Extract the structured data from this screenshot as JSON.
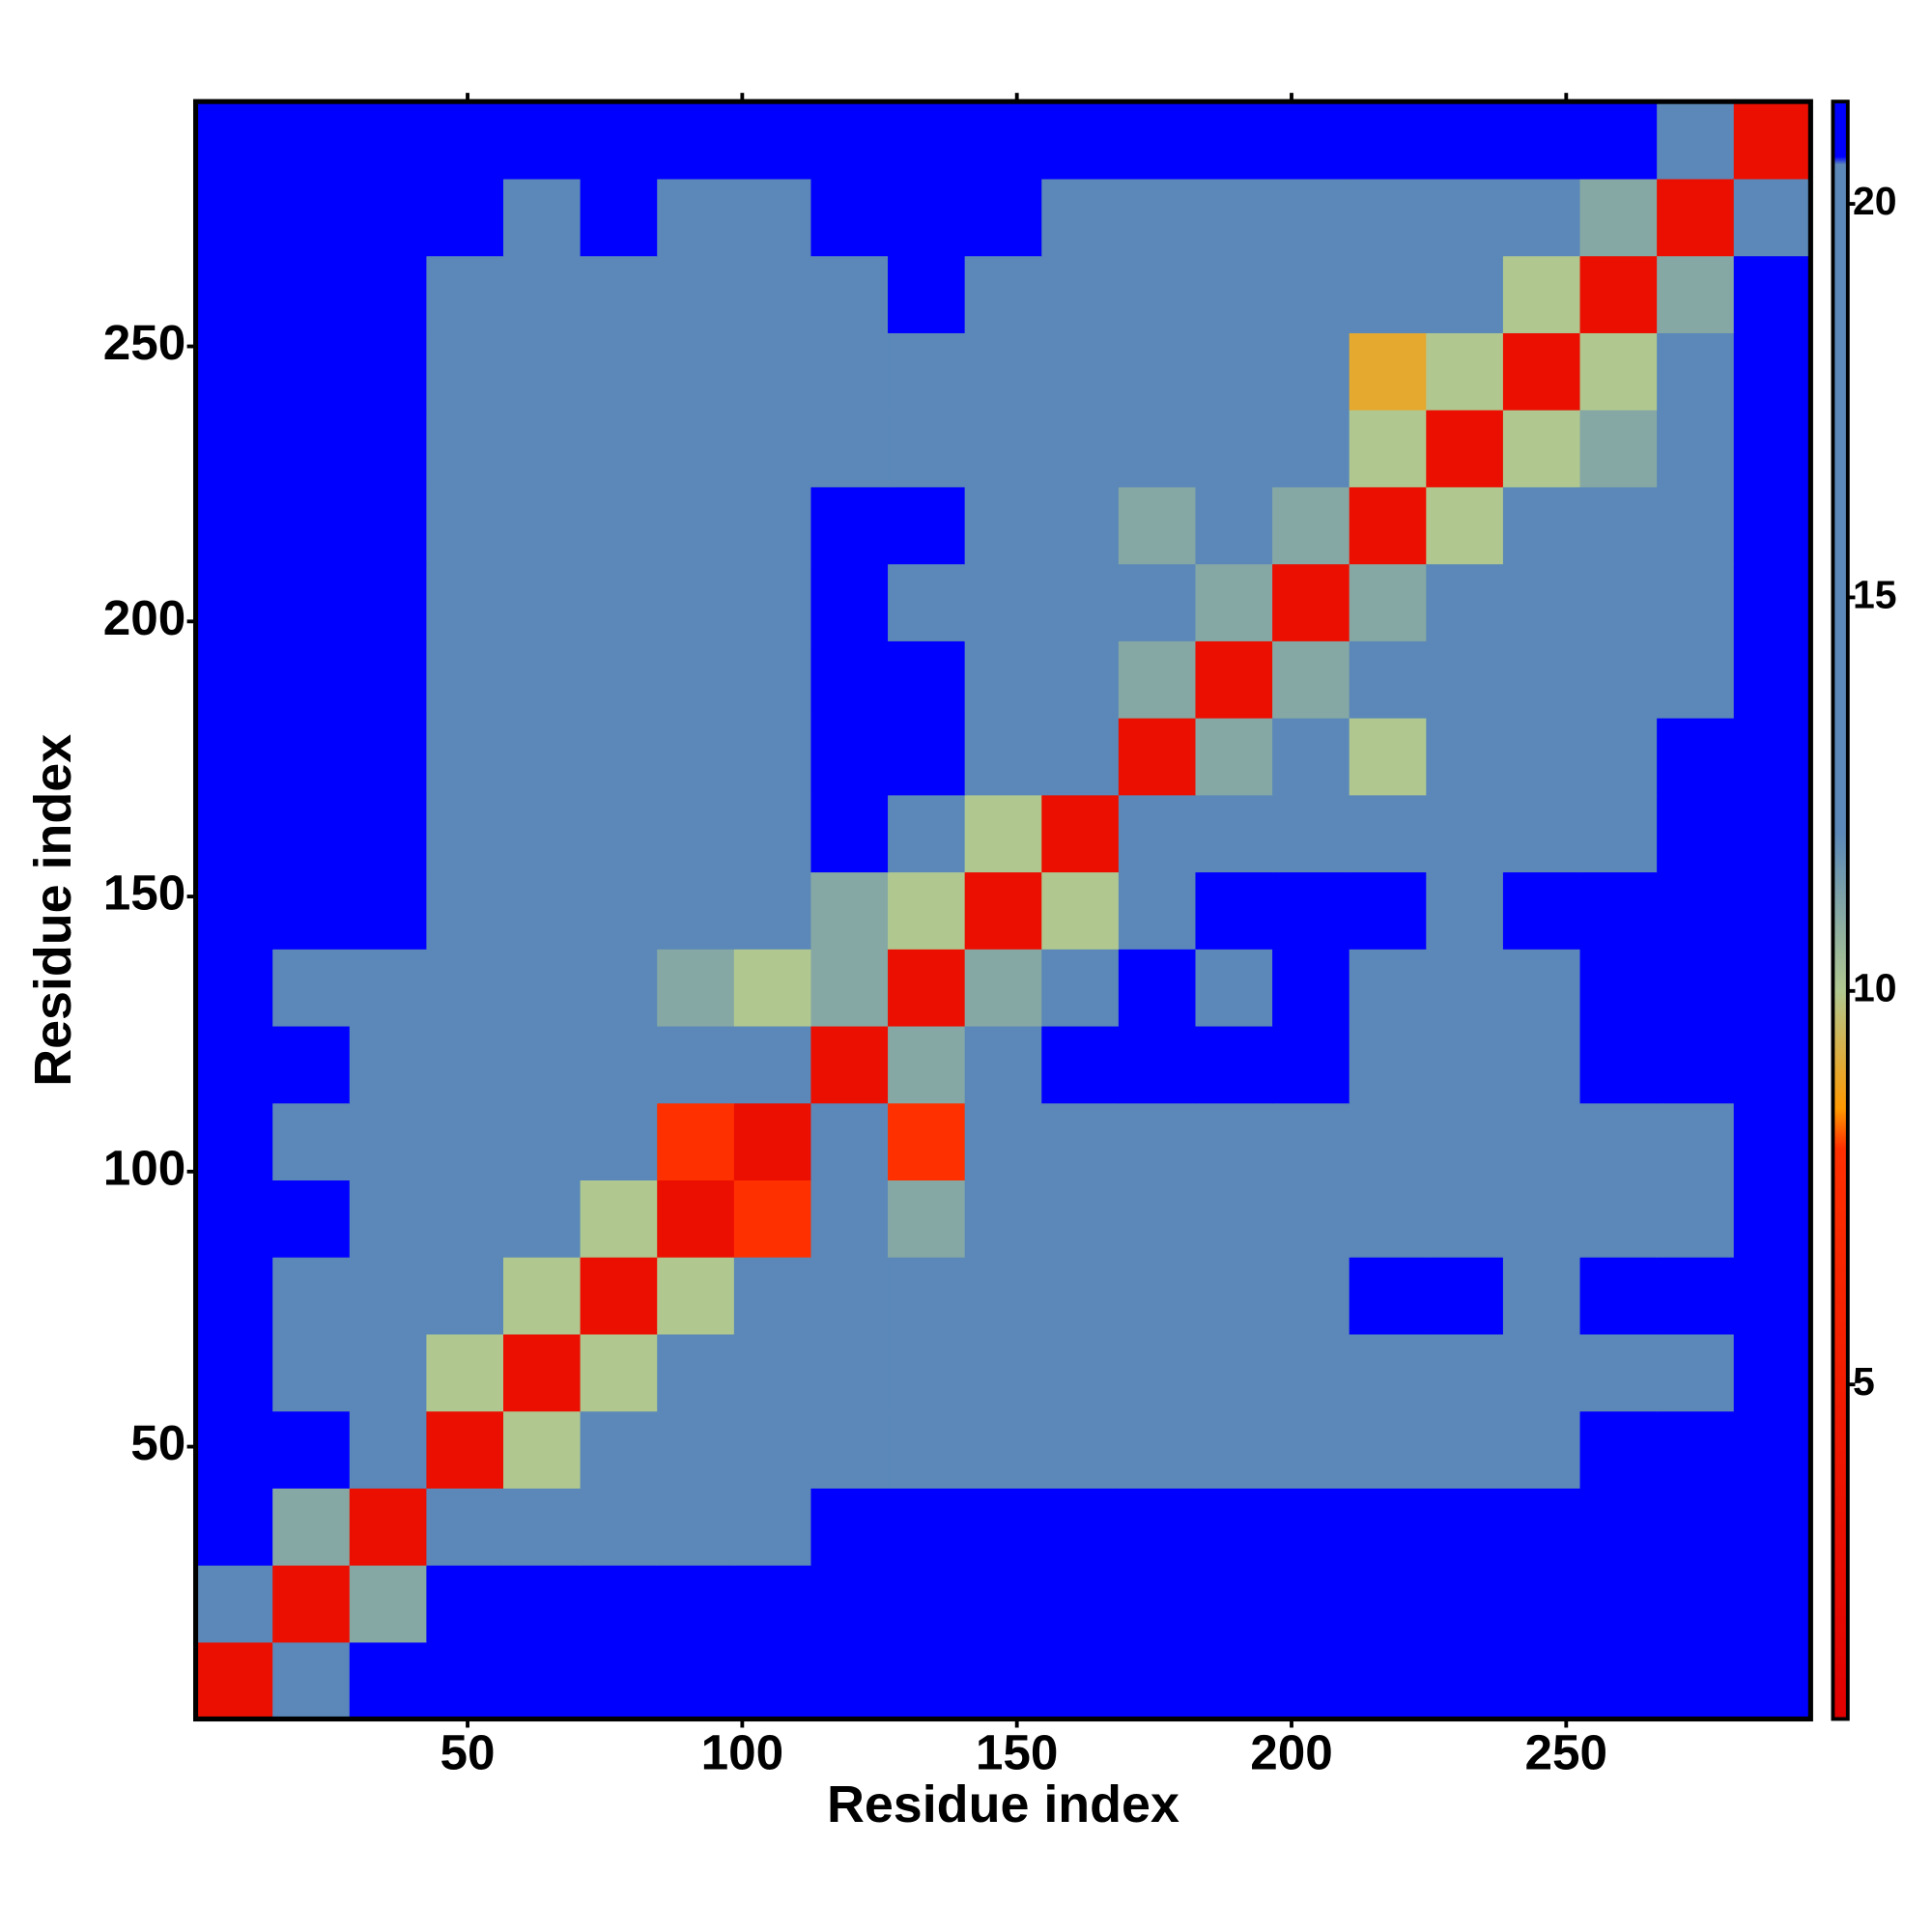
{
  "chart_data": {
    "type": "heatmap",
    "x_label": "Residue index",
    "y_label": "Residue index",
    "x": [
      7.5,
      21.5,
      35.5,
      49.5,
      63.5,
      77.5,
      91.5,
      105.5,
      119.5,
      133.5,
      147.5,
      161.5,
      175.5,
      189.5,
      203.5,
      217.5,
      231.5,
      245.5,
      259.5,
      273.5,
      287.5
    ],
    "y": [
      7.5,
      21.5,
      35.5,
      49.5,
      63.5,
      77.5,
      91.5,
      105.5,
      119.5,
      133.5,
      147.5,
      161.5,
      175.5,
      189.5,
      203.5,
      217.5,
      231.5,
      245.5,
      259.5,
      273.5,
      287.5
    ],
    "values": [
      [
        3,
        13,
        21,
        21,
        21,
        21,
        21,
        21,
        21,
        21,
        21,
        21,
        21,
        21,
        21,
        21,
        21,
        21,
        21,
        21,
        21
      ],
      [
        13,
        3,
        11,
        21,
        21,
        21,
        21,
        21,
        21,
        21,
        21,
        21,
        21,
        21,
        21,
        21,
        21,
        21,
        21,
        21,
        21
      ],
      [
        21,
        11,
        3,
        13,
        20,
        20,
        20,
        20,
        21,
        21,
        21,
        21,
        21,
        21,
        21,
        21,
        21,
        21,
        21,
        21,
        21
      ],
      [
        21,
        21,
        13,
        3,
        10,
        14,
        14,
        15,
        18,
        19,
        19,
        20,
        20,
        20,
        20,
        20,
        20,
        20,
        21,
        21,
        21
      ],
      [
        21,
        20,
        20,
        10,
        3,
        10,
        12,
        12,
        15,
        14,
        16,
        17,
        19,
        17,
        17,
        19,
        17,
        17,
        17,
        18,
        21
      ],
      [
        21,
        20,
        20,
        14,
        10,
        3,
        10,
        12,
        16,
        15,
        16,
        18,
        20,
        19,
        20,
        21,
        21,
        20,
        21,
        21,
        21
      ],
      [
        21,
        21,
        20,
        14,
        12,
        10,
        3,
        8,
        13,
        11,
        17,
        17,
        19,
        17,
        17,
        17,
        17,
        17,
        17,
        17,
        21
      ],
      [
        21,
        20,
        20,
        13,
        12,
        12,
        8,
        3,
        12,
        8,
        17,
        18,
        20,
        17,
        18,
        17,
        17,
        17,
        17,
        17,
        21
      ],
      [
        21,
        21,
        20,
        17,
        16,
        15,
        13,
        12,
        3,
        11,
        18,
        21,
        21,
        21,
        21,
        18,
        17,
        19,
        21,
        21,
        21
      ],
      [
        21,
        20,
        20,
        15,
        13,
        14,
        11,
        10,
        11,
        3,
        11,
        19,
        21,
        20,
        21,
        17,
        18,
        19,
        21,
        21,
        21
      ],
      [
        21,
        21,
        21,
        17,
        17,
        17,
        16,
        17,
        11,
        10,
        3,
        10,
        20,
        21,
        21,
        21,
        19,
        21,
        21,
        21,
        21
      ],
      [
        21,
        21,
        21,
        16,
        17,
        19,
        18,
        17,
        21,
        20,
        10,
        3,
        12,
        17,
        17,
        17,
        17,
        17,
        18,
        21,
        21
      ],
      [
        21,
        21,
        21,
        18,
        17,
        19,
        18,
        18,
        21,
        21,
        18,
        12,
        3,
        11,
        17,
        10,
        14,
        16,
        17,
        21,
        21
      ],
      [
        21,
        21,
        21,
        19,
        19,
        20,
        18,
        19,
        21,
        21,
        17,
        16,
        11,
        3,
        11,
        15,
        13,
        15,
        16,
        19,
        21
      ],
      [
        21,
        21,
        21,
        19,
        19,
        19,
        17,
        17,
        21,
        20,
        17,
        15,
        14,
        11,
        3,
        11,
        14,
        13,
        13,
        17,
        21
      ],
      [
        21,
        21,
        21,
        19,
        18,
        19,
        17,
        17,
        21,
        21,
        16,
        14,
        11,
        14,
        11,
        3,
        10,
        14,
        15,
        17,
        21
      ],
      [
        21,
        21,
        21,
        17,
        16,
        17,
        15,
        15,
        20,
        20,
        16,
        14,
        12,
        13,
        14,
        10,
        3,
        10,
        11,
        15,
        21
      ],
      [
        21,
        21,
        21,
        17,
        17,
        18,
        16,
        16,
        19,
        20,
        17,
        16,
        13,
        13,
        15,
        9,
        10,
        3,
        10,
        15,
        21
      ],
      [
        21,
        21,
        21,
        19,
        17,
        20,
        17,
        18,
        19,
        21,
        19,
        16,
        15,
        13,
        14,
        14,
        12,
        10,
        3,
        11,
        21
      ],
      [
        21,
        21,
        21,
        21,
        18,
        21,
        18,
        18,
        21,
        21,
        21,
        18,
        17,
        17,
        18,
        17,
        16,
        17,
        11,
        3,
        12
      ],
      [
        21,
        21,
        21,
        21,
        21,
        21,
        21,
        21,
        21,
        21,
        21,
        21,
        21,
        21,
        21,
        21,
        21,
        21,
        21,
        12,
        3
      ]
    ],
    "xlim": [
      0.5,
      294.5
    ],
    "ylim": [
      0.5,
      294.5
    ],
    "xticks": [
      50,
      100,
      150,
      200,
      250
    ],
    "yticks": [
      50,
      100,
      150,
      200,
      250
    ],
    "clim": [
      0.75,
      21.3
    ],
    "cticks": [
      5,
      10,
      15,
      20
    ],
    "colorscale": [
      [
        0.75,
        "#e00000"
      ],
      [
        8,
        "#ff3000"
      ],
      [
        8.5,
        "#ff9900"
      ],
      [
        10,
        "#b0c890"
      ],
      [
        12,
        "#5b88b8"
      ],
      [
        20.5,
        "#5b88b8"
      ],
      [
        20.6,
        "#0000ff"
      ]
    ]
  }
}
